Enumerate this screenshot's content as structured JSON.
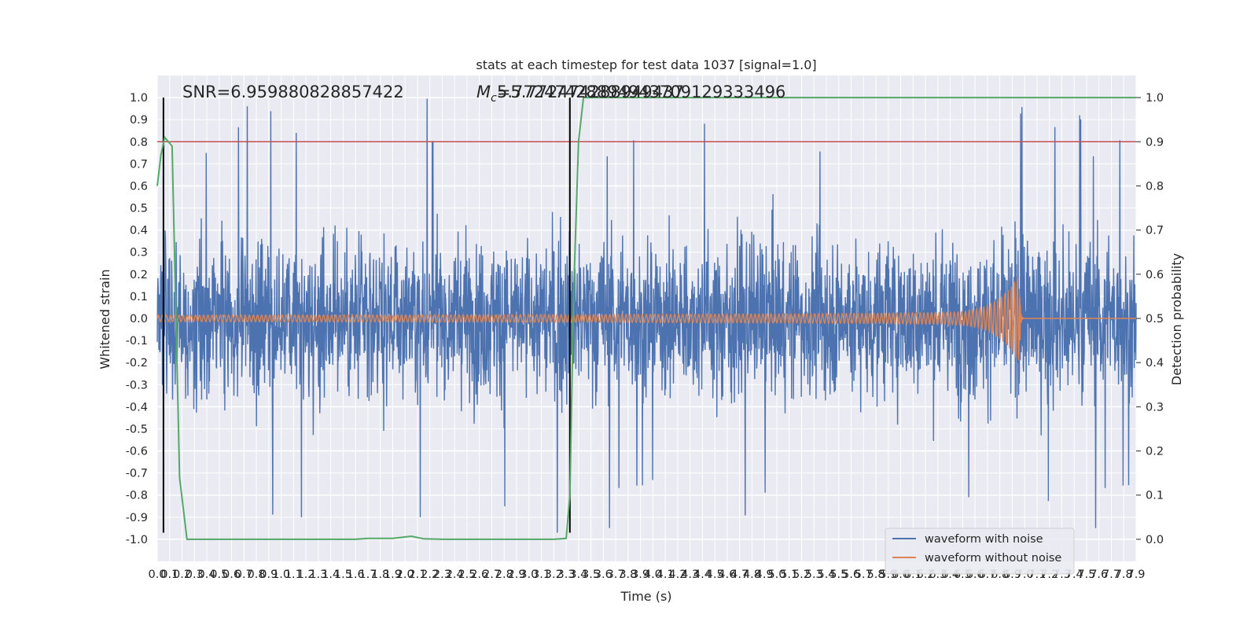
{
  "chart_data": {
    "type": "line",
    "title": "stats at each timestep for test data 1037 [signal=1.0]",
    "xlabel": "Time (s)",
    "ylabel_left": "Whitened strain",
    "ylabel_right": "Detection probability",
    "xlim": [
      0.0,
      7.9
    ],
    "ylim_left": [
      -1.1,
      1.1
    ],
    "ylim_right": [
      -0.05,
      1.05
    ],
    "x_ticks": [
      "0.0",
      "0.1",
      "0.2",
      "0.3",
      "0.4",
      "0.5",
      "0.6",
      "0.7",
      "0.8",
      "0.9",
      "1.0",
      "1.1",
      "1.2",
      "1.3",
      "1.4",
      "1.5",
      "1.6",
      "1.7",
      "1.8",
      "1.9",
      "2.0",
      "2.1",
      "2.2",
      "2.3",
      "2.4",
      "2.5",
      "2.6",
      "2.7",
      "2.8",
      "2.9",
      "3.0",
      "3.1",
      "3.2",
      "3.3",
      "3.4",
      "3.5",
      "3.6",
      "3.7",
      "3.8",
      "3.9",
      "4.0",
      "4.1",
      "4.2",
      "4.3",
      "4.4",
      "4.5",
      "4.6",
      "4.7",
      "4.8",
      "4.9",
      "5.0",
      "5.1",
      "5.2",
      "5.3",
      "5.4",
      "5.5",
      "5.6",
      "5.7",
      "5.8",
      "5.9",
      "6.0",
      "6.1",
      "6.2",
      "6.3",
      "6.4",
      "6.5",
      "6.6",
      "6.7",
      "6.8",
      "6.9",
      "7.0",
      "7.1",
      "7.2",
      "7.3",
      "7.4",
      "7.5",
      "7.6",
      "7.7",
      "7.8",
      "7.9"
    ],
    "y_ticks_left": [
      "-1.0",
      "-0.9",
      "-0.8",
      "-0.7",
      "-0.6",
      "-0.5",
      "-0.4",
      "-0.3",
      "-0.2",
      "-0.1",
      "0.0",
      "0.1",
      "0.2",
      "0.3",
      "0.4",
      "0.5",
      "0.6",
      "0.7",
      "0.8",
      "0.9",
      "1.0"
    ],
    "y_ticks_right": [
      "0.0",
      "0.1",
      "0.2",
      "0.3",
      "0.4",
      "0.5",
      "0.6",
      "0.7",
      "0.8",
      "0.9",
      "1.0"
    ],
    "annotations": {
      "snr": "SNR=6.959880828857422",
      "mc_symbol": "M",
      "mc_sub": "c",
      "mc_value": "=5.772474288949437",
      "mc_overlap": "5.77247428894943709129333496"
    },
    "series": [
      {
        "name": "waveform with noise",
        "color": "#4c72b0",
        "kind": "noise",
        "envelope": {
          "typical_amplitude": 0.45,
          "peak_max": 1.0,
          "peak_min": -0.97
        }
      },
      {
        "name": "waveform without noise",
        "color": "#dd8452",
        "kind": "chirp",
        "amplitude_start": 0.015,
        "amplitude_peak": 0.19,
        "merger_time": 6.96,
        "ringdown_end": 6.98
      },
      {
        "name": "",
        "color": "#55a868",
        "axis": "right",
        "x": [
          0.0,
          0.03,
          0.06,
          0.12,
          0.18,
          0.24,
          0.3,
          0.4,
          1.0,
          1.6,
          1.7,
          1.9,
          2.05,
          2.15,
          2.3,
          2.5,
          3.0,
          3.2,
          3.3,
          3.33,
          3.36,
          3.4,
          3.44,
          7.9
        ],
        "y": [
          0.8,
          0.87,
          0.91,
          0.89,
          0.14,
          0.0,
          0.0,
          0.0,
          0.0,
          0.0,
          0.002,
          0.002,
          0.007,
          0.001,
          0.0,
          0.0,
          0.0,
          0.0,
          0.002,
          0.1,
          0.55,
          0.9,
          1.0,
          1.0
        ]
      }
    ],
    "hline_threshold": {
      "value": 0.9,
      "axis": "right",
      "color": "#c44e52"
    },
    "vlines": [
      {
        "x": 0.05,
        "color": "#000000"
      },
      {
        "x": 3.33,
        "color": "#000000"
      }
    ],
    "grid": true,
    "legend": "lower right"
  }
}
